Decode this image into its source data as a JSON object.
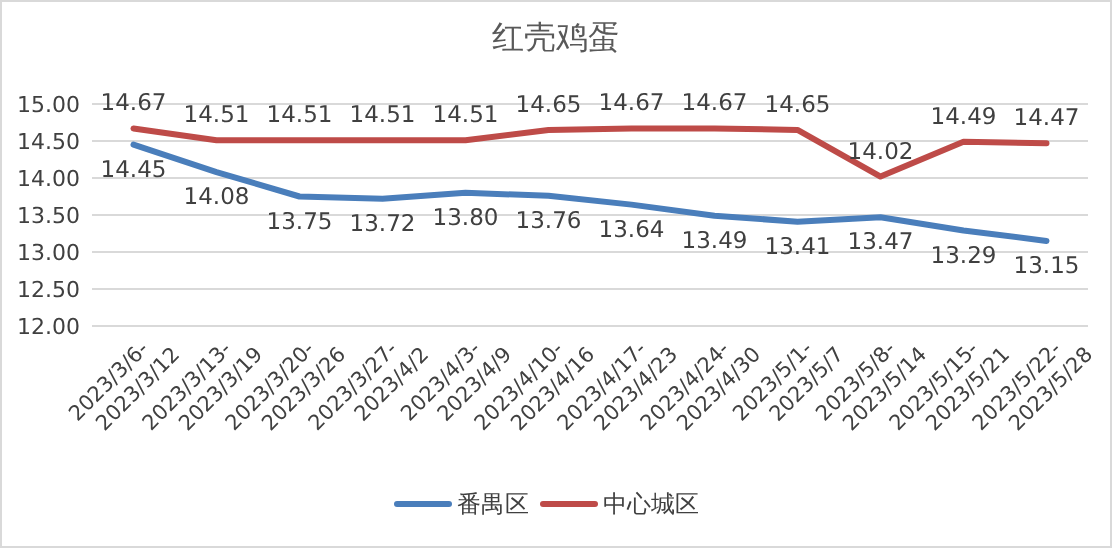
{
  "chart_data": {
    "type": "line",
    "title": "红壳鸡蛋",
    "categories": [
      "2023/3/6-2023/3/12",
      "2023/3/13-2023/3/19",
      "2023/3/20-2023/3/26",
      "2023/3/27-2023/4/2",
      "2023/4/3-2023/4/9",
      "2023/4/10-2023/4/16",
      "2023/4/17-2023/4/23",
      "2023/4/24-2023/4/30",
      "2023/5/1-2023/5/7",
      "2023/5/8-2023/5/14",
      "2023/5/15-2023/5/21",
      "2023/5/22-2023/5/28"
    ],
    "series": [
      {
        "name": "番禺区",
        "color": "#4a7ebb",
        "values": [
          14.45,
          14.08,
          13.75,
          13.72,
          13.8,
          13.76,
          13.64,
          13.49,
          13.41,
          13.47,
          13.29,
          13.15
        ],
        "value_labels": [
          "14.45",
          "14.08",
          "13.75",
          "13.72",
          "13.80",
          "13.76",
          "13.64",
          "13.49",
          "13.41",
          "13.47",
          "13.29",
          "13.15"
        ]
      },
      {
        "name": "中心城区",
        "color": "#be4b48",
        "values": [
          14.67,
          14.51,
          14.51,
          14.51,
          14.51,
          14.65,
          14.67,
          14.67,
          14.65,
          14.02,
          14.49,
          14.47
        ],
        "value_labels": [
          "14.67",
          "14.51",
          "14.51",
          "14.51",
          "14.51",
          "14.65",
          "14.67",
          "14.67",
          "14.65",
          "14.02",
          "14.49",
          "14.47"
        ]
      }
    ],
    "ylim": [
      12,
      15
    ],
    "yticks": [
      {
        "value": 12,
        "label": "12.00"
      },
      {
        "value": 12.5,
        "label": "12.50"
      },
      {
        "value": 13,
        "label": "13.00"
      },
      {
        "value": 13.5,
        "label": "13.50"
      },
      {
        "value": 14,
        "label": "14.00"
      },
      {
        "value": 14.5,
        "label": "14.50"
      },
      {
        "value": 15,
        "label": "15.00"
      }
    ],
    "grid": "y",
    "legend": "bottom",
    "marker": "none",
    "line_style": "solid"
  }
}
